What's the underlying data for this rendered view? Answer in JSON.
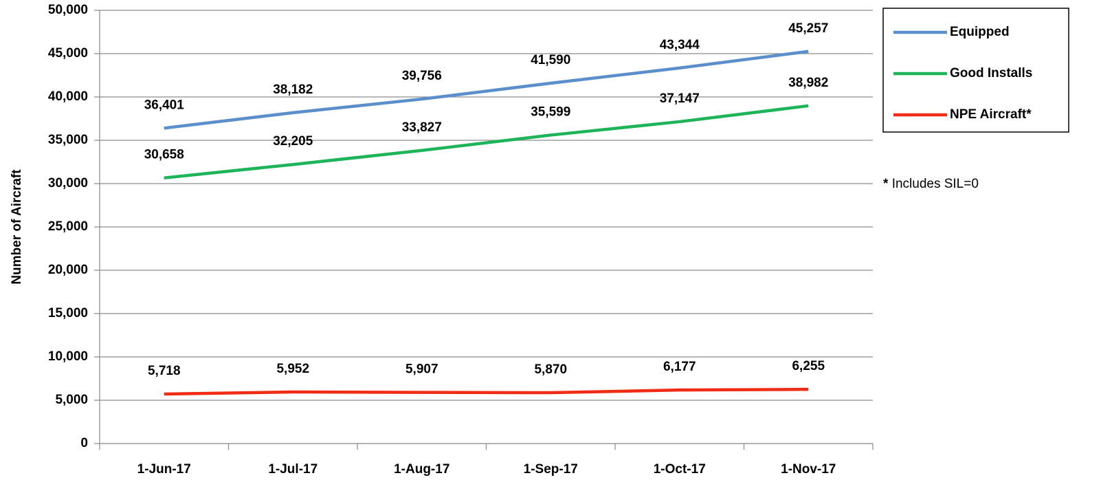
{
  "chart_data": {
    "type": "line",
    "y_label": "Number of Aircraft",
    "categories": [
      "1-Jun-17",
      "1-Jul-17",
      "1-Aug-17",
      "1-Sep-17",
      "1-Oct-17",
      "1-Nov-17"
    ],
    "series": [
      {
        "name": "Equipped",
        "color": "#5b8fcb",
        "values": [
          36401,
          38182,
          39756,
          41590,
          43344,
          45257
        ],
        "value_labels": [
          "36,401",
          "38,182",
          "39,756",
          "41,590",
          "43,344",
          "45,257"
        ]
      },
      {
        "name": "Good Installs",
        "color": "#1db45a",
        "values": [
          30658,
          32205,
          33827,
          35599,
          37147,
          38982
        ],
        "value_labels": [
          "30,658",
          "32,205",
          "33,827",
          "35,599",
          "37,147",
          "38,982"
        ]
      },
      {
        "name": "NPE Aircraft*",
        "color": "#f02c17",
        "values": [
          5718,
          5952,
          5907,
          5870,
          6177,
          6255
        ],
        "value_labels": [
          "5,718",
          "5,952",
          "5,907",
          "5,870",
          "6,177",
          "6,255"
        ]
      }
    ],
    "ylim": [
      0,
      50000
    ],
    "yticks": [
      0,
      {
        "value": 5000,
        "label": "5,000"
      },
      {
        "value": 10000,
        "label": "10,000"
      },
      {
        "value": 15000,
        "label": "15,000"
      },
      {
        "value": 20000,
        "label": "20,000"
      },
      {
        "value": 25000,
        "label": "25,000"
      },
      {
        "value": 30000,
        "label": "30,000"
      },
      {
        "value": 35000,
        "label": "35,000"
      },
      {
        "value": 40000,
        "label": "40,000"
      },
      {
        "value": 45000,
        "label": "45,000"
      },
      {
        "value": 50000,
        "label": "50,000"
      }
    ],
    "grid": true,
    "legend": "right",
    "footnote": {
      "marker": "*",
      "text": "Includes SIL=0"
    }
  }
}
